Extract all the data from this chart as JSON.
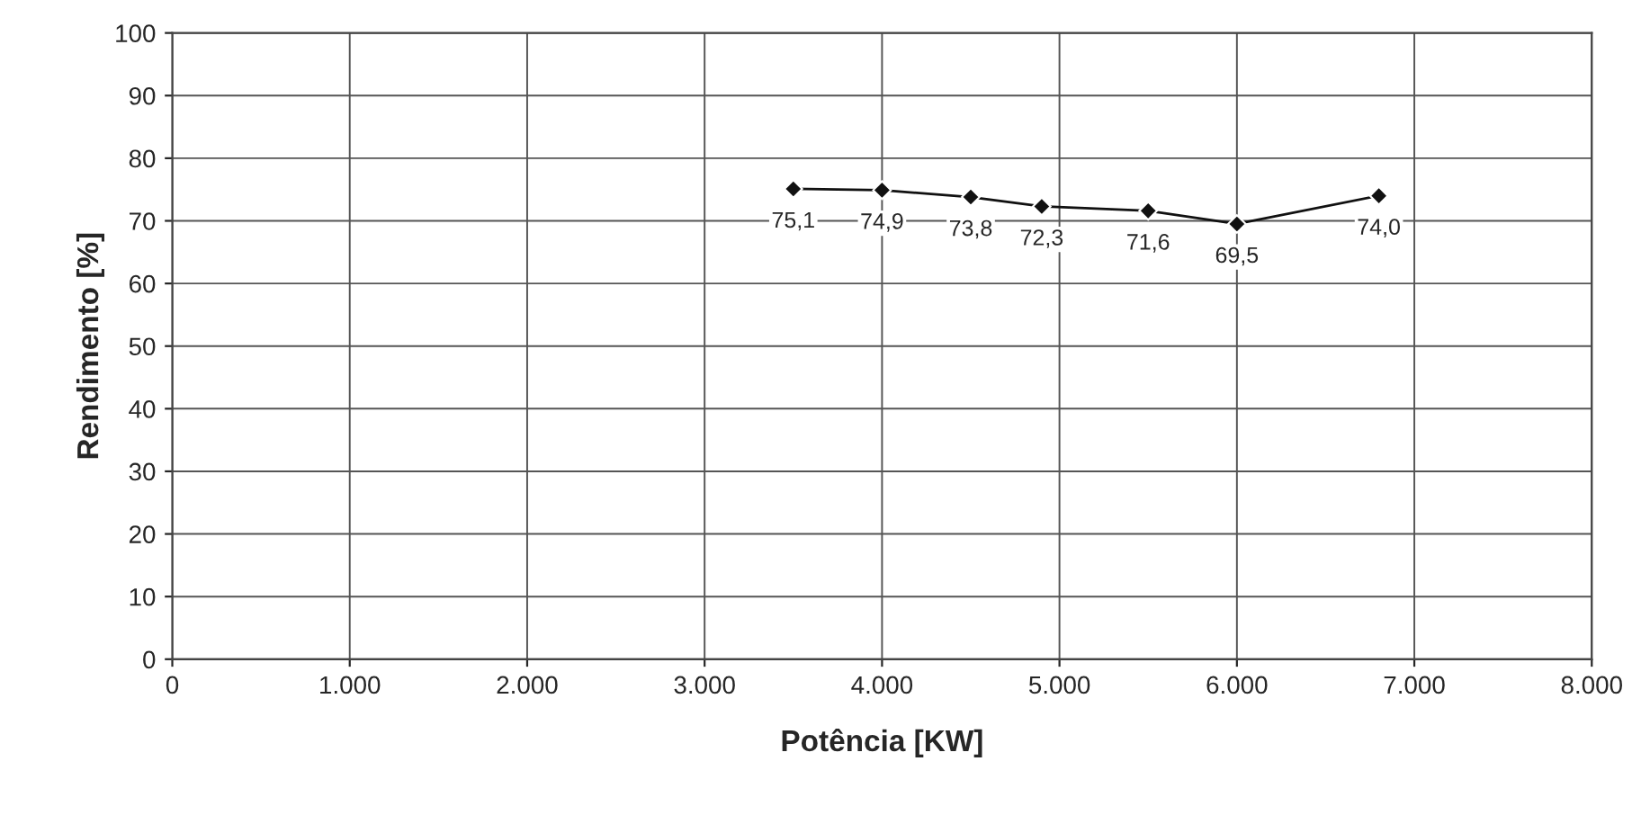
{
  "chart_data": {
    "type": "line",
    "xlabel": "Potência [KW]",
    "ylabel": "Rendimento [%]",
    "x": [
      3500,
      4000,
      4500,
      4900,
      5500,
      6000,
      6800
    ],
    "series": [
      {
        "color": "#111111",
        "values": [
          75.1,
          74.9,
          73.8,
          72.3,
          71.6,
          69.5,
          74.0
        ]
      }
    ],
    "value_labels": [
      "75,1",
      "74,9",
      "73,8",
      "72,3",
      "71,6",
      "69,5",
      "74,0"
    ],
    "xlim": [
      0,
      8000
    ],
    "xticks": [
      0,
      {
        "value": 1000,
        "label": "1.000"
      },
      {
        "value": 2000,
        "label": "2.000"
      },
      {
        "value": 3000,
        "label": "3.000"
      },
      {
        "value": 4000,
        "label": "4.000"
      },
      {
        "value": 5000,
        "label": "5.000"
      },
      {
        "value": 6000,
        "label": "6.000"
      },
      {
        "value": 7000,
        "label": "7.000"
      },
      {
        "value": 8000,
        "label": "8.000"
      }
    ],
    "ylim": [
      0,
      100
    ],
    "yticks": [
      0,
      10,
      20,
      30,
      40,
      50,
      60,
      70,
      80,
      90,
      100
    ],
    "grid": true,
    "marker": "diamond",
    "line_style": "solid"
  }
}
